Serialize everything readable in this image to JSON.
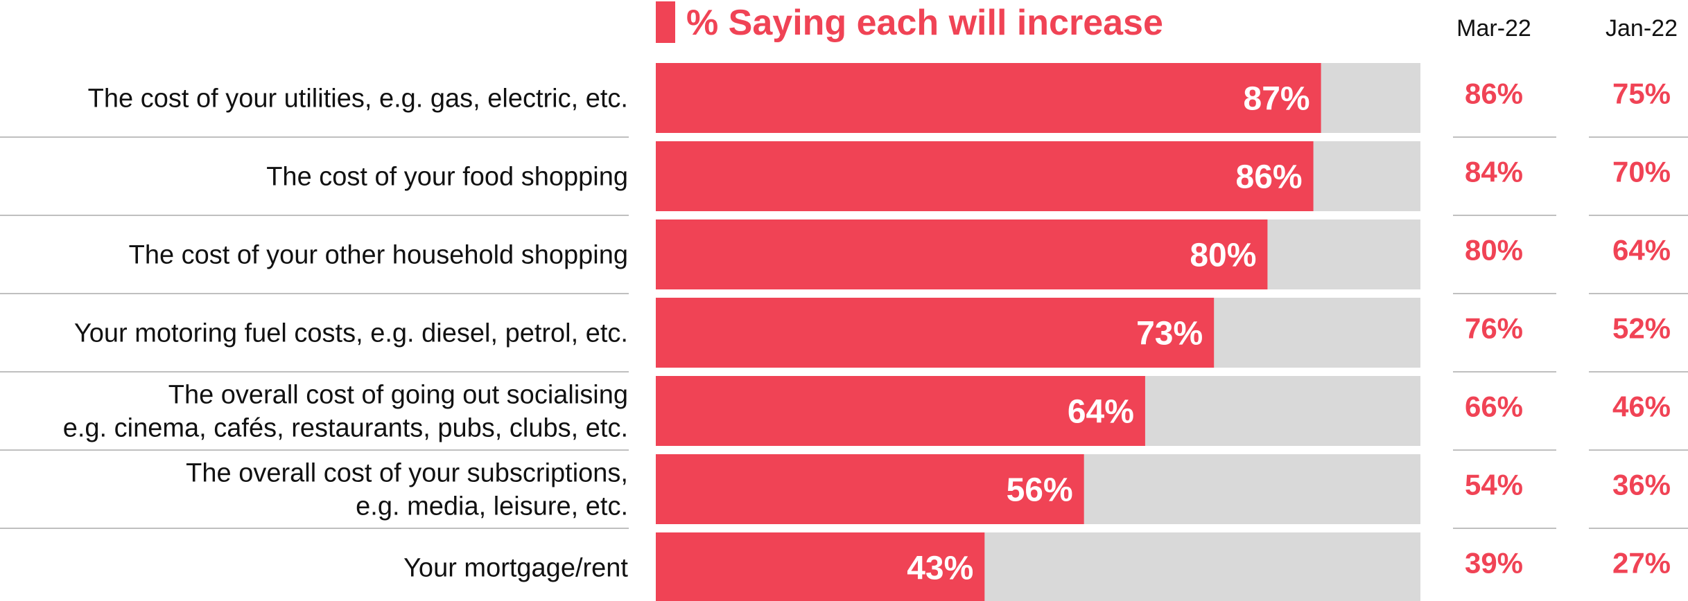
{
  "colors": {
    "accent": "#f04355",
    "track": "#d9d9d9",
    "divider": "#bfbfbf",
    "text": "#111111"
  },
  "chart_data": {
    "type": "bar",
    "orientation": "horizontal",
    "title": "% Saying each will increase",
    "xlim": [
      0,
      100
    ],
    "categories": [
      [
        "The cost of your utilities, e.g. gas, electric, etc."
      ],
      [
        "The cost of your food shopping"
      ],
      [
        "The cost of your other household shopping"
      ],
      [
        "Your motoring fuel costs, e.g. diesel, petrol, etc."
      ],
      [
        "The overall cost of going out socialising",
        "e.g. cinema, cafés, restaurants, pubs, clubs, etc."
      ],
      [
        "The overall cost of your subscriptions,",
        "e.g. media, leisure, etc."
      ],
      [
        "Your mortgage/rent"
      ]
    ],
    "values": [
      87,
      86,
      80,
      73,
      64,
      56,
      43
    ],
    "value_labels": [
      "87%",
      "86%",
      "80%",
      "73%",
      "64%",
      "56%",
      "43%"
    ],
    "comparison_columns": [
      {
        "header": "Mar-22",
        "values": [
          "86%",
          "84%",
          "80%",
          "76%",
          "66%",
          "54%",
          "39%"
        ]
      },
      {
        "header": "Jan-22",
        "values": [
          "75%",
          "70%",
          "64%",
          "52%",
          "46%",
          "36%",
          "27%"
        ]
      }
    ]
  }
}
